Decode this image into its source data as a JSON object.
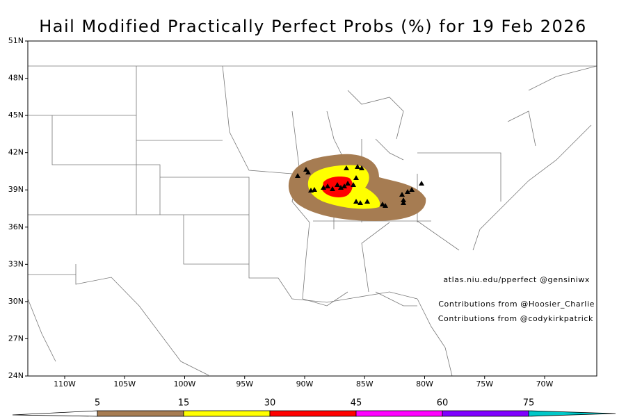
{
  "map": {
    "title": "Hail Modified Practically Perfect Probs (%) for 19 Feb 2026",
    "lat_ticks": [
      {
        "value": 24,
        "label": "24N"
      },
      {
        "value": 27,
        "label": "27N"
      },
      {
        "value": 30,
        "label": "30N"
      },
      {
        "value": 33,
        "label": "33N"
      },
      {
        "value": 36,
        "label": "36N"
      },
      {
        "value": 39,
        "label": "39N"
      },
      {
        "value": 42,
        "label": "42N"
      },
      {
        "value": 45,
        "label": "45N"
      },
      {
        "value": 48,
        "label": "48N"
      },
      {
        "value": 51,
        "label": "51N"
      }
    ],
    "lon_ticks": [
      {
        "value": -110,
        "label": "110W"
      },
      {
        "value": -105,
        "label": "105W"
      },
      {
        "value": -100,
        "label": "100W"
      },
      {
        "value": -95,
        "label": "95W"
      },
      {
        "value": -90,
        "label": "90W"
      },
      {
        "value": -85,
        "label": "85W"
      },
      {
        "value": -80,
        "label": "80W"
      },
      {
        "value": -75,
        "label": "75W"
      },
      {
        "value": -70,
        "label": "70W"
      }
    ],
    "credits": [
      "atlas.niu.edu/pperfect @gensiniwx",
      "Contributions from @Hoosier_Charlie",
      "Contributions from @codykirkpatrick"
    ],
    "colorbar": {
      "levels": [
        5,
        15,
        30,
        45,
        60,
        75
      ],
      "colors": [
        "#a67c52",
        "#ffff00",
        "#ff0000",
        "#ff00ff",
        "#8000ff",
        "#00c8c8"
      ]
    }
  }
}
